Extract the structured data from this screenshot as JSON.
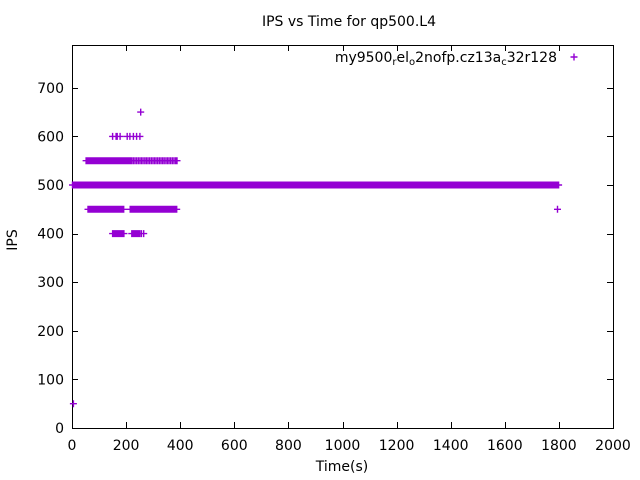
{
  "chart_data": {
    "type": "scatter",
    "title": "IPS vs Time for qp500.L4",
    "xlabel": "Time(s)",
    "ylabel": "IPS",
    "xlim": [
      0,
      2000
    ],
    "ylim": [
      0,
      788
    ],
    "xticks": [
      0,
      200,
      400,
      600,
      800,
      1000,
      1200,
      1400,
      1600,
      1800,
      2000
    ],
    "yticks": [
      0,
      100,
      200,
      300,
      400,
      500,
      600,
      700
    ],
    "grid": false,
    "background_color": "#ffffff",
    "border_color": "#000000",
    "legend_position": "top-right-inside",
    "series": [
      {
        "name": "my9500_rel_o2nofp.cz13a_c32r128",
        "label_segments": [
          {
            "t": "my9500"
          },
          {
            "t": "r",
            "sub": true
          },
          {
            "t": "el"
          },
          {
            "t": "o",
            "sub": true
          },
          {
            "t": "2nofp.cz13a"
          },
          {
            "t": "c",
            "sub": true
          },
          {
            "t": "32r128"
          }
        ],
        "marker": "plus",
        "color": "#9400D3",
        "dense_bands": [
          {
            "y": 500,
            "x_from": 2,
            "x_to": 1800,
            "x_step": 3
          }
        ],
        "levels": [
          {
            "y": 650,
            "x": [
              254
            ]
          },
          {
            "y": 600,
            "x": [
              150,
              163,
              167,
              178,
              204,
              214,
              227,
              239,
              251
            ]
          },
          {
            "y": 550,
            "x": [
              52,
              56,
              59,
              63,
              66,
              70,
              73,
              77,
              81,
              85,
              89,
              93,
              97,
              101,
              105,
              109,
              113,
              117,
              121,
              125,
              129,
              133,
              137,
              141,
              145,
              149,
              153,
              157,
              161,
              165,
              169,
              173,
              177,
              181,
              186,
              191,
              196,
              201,
              206,
              211,
              216,
              221,
              227,
              233,
              239,
              245,
              251,
              257,
              263,
              269,
              275,
              281,
              287,
              293,
              299,
              305,
              311,
              317,
              323,
              329,
              335,
              341,
              347,
              353,
              359,
              365,
              371,
              377,
              383,
              388
            ]
          },
          {
            "y": 450,
            "x": [
              59,
              63,
              67,
              71,
              75,
              79,
              83,
              87,
              91,
              95,
              99,
              103,
              107,
              111,
              115,
              119,
              123,
              127,
              131,
              135,
              139,
              143,
              147,
              151,
              155,
              159,
              163,
              167,
              171,
              175,
              179,
              183,
              187,
              191,
              215,
              219,
              223,
              227,
              231,
              235,
              239,
              243,
              247,
              251,
              255,
              259,
              263,
              267,
              271,
              275,
              279,
              283,
              287,
              291,
              295,
              299,
              303,
              307,
              311,
              315,
              319,
              323,
              327,
              331,
              335,
              339,
              343,
              347,
              351,
              355,
              359,
              363,
              367,
              371,
              375,
              379,
              383,
              387,
              1795
            ]
          },
          {
            "y": 400,
            "x": [
              150,
              155,
              160,
              164,
              168,
              172,
              176,
              180,
              184,
              188,
              192,
              221,
              226,
              231,
              236,
              241,
              246,
              251,
              257,
              265
            ]
          },
          {
            "y": 50,
            "x": [
              5
            ]
          }
        ]
      }
    ]
  }
}
